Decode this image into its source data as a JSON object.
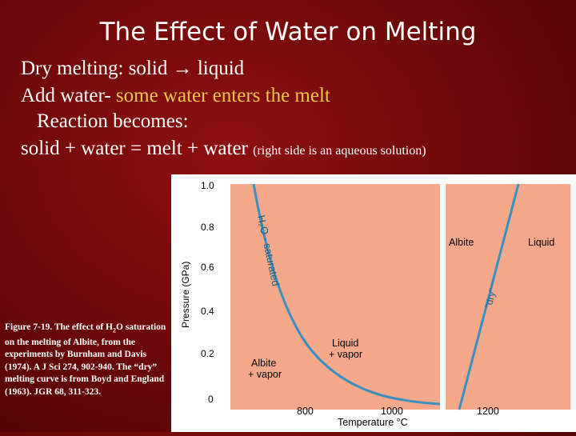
{
  "slide": {
    "title": "The Effect of Water on Melting",
    "line1": "Dry melting: solid → liquid",
    "line2_prefix": "Add water- ",
    "line2_highlight": "some water enters the melt",
    "line3": "Reaction becomes:",
    "line4_main": "solid + water  = melt + water",
    "line4_note": "(right side  is an aqueous solution)"
  },
  "caption": {
    "part1": "Figure 7-19. The effect of H",
    "sub": "2",
    "part2": "O saturation on the melting of Albite, from the experiments by Burnham and Davis (1974). A J Sci 274, 902-940. The “dry” melting curve is from Boyd and England (1963). JGR 68, 311-323."
  },
  "chart_data": {
    "type": "line",
    "xlabel": "Temperature °C",
    "ylabel": "Pressure (GPa)",
    "y_ticks": [
      "1.0",
      "0.8",
      "0.6",
      "0.4",
      "0.2",
      "0"
    ],
    "x_ticks_left": [
      "800",
      "1000"
    ],
    "x_ticks_right": [
      "1200"
    ],
    "curve_labels": {
      "saturated": "H₂O - saturated",
      "dry": "\"dry\""
    },
    "field_labels": {
      "albite_vapor_1": "Albite",
      "albite_vapor_2": "+ vapor",
      "liquid_vapor_1": "Liquid",
      "liquid_vapor_2": "+ vapor",
      "albite": "Albite",
      "liquid": "Liquid"
    },
    "colors": {
      "background": "#f5a98a",
      "curve": "#3a8fc0"
    }
  }
}
